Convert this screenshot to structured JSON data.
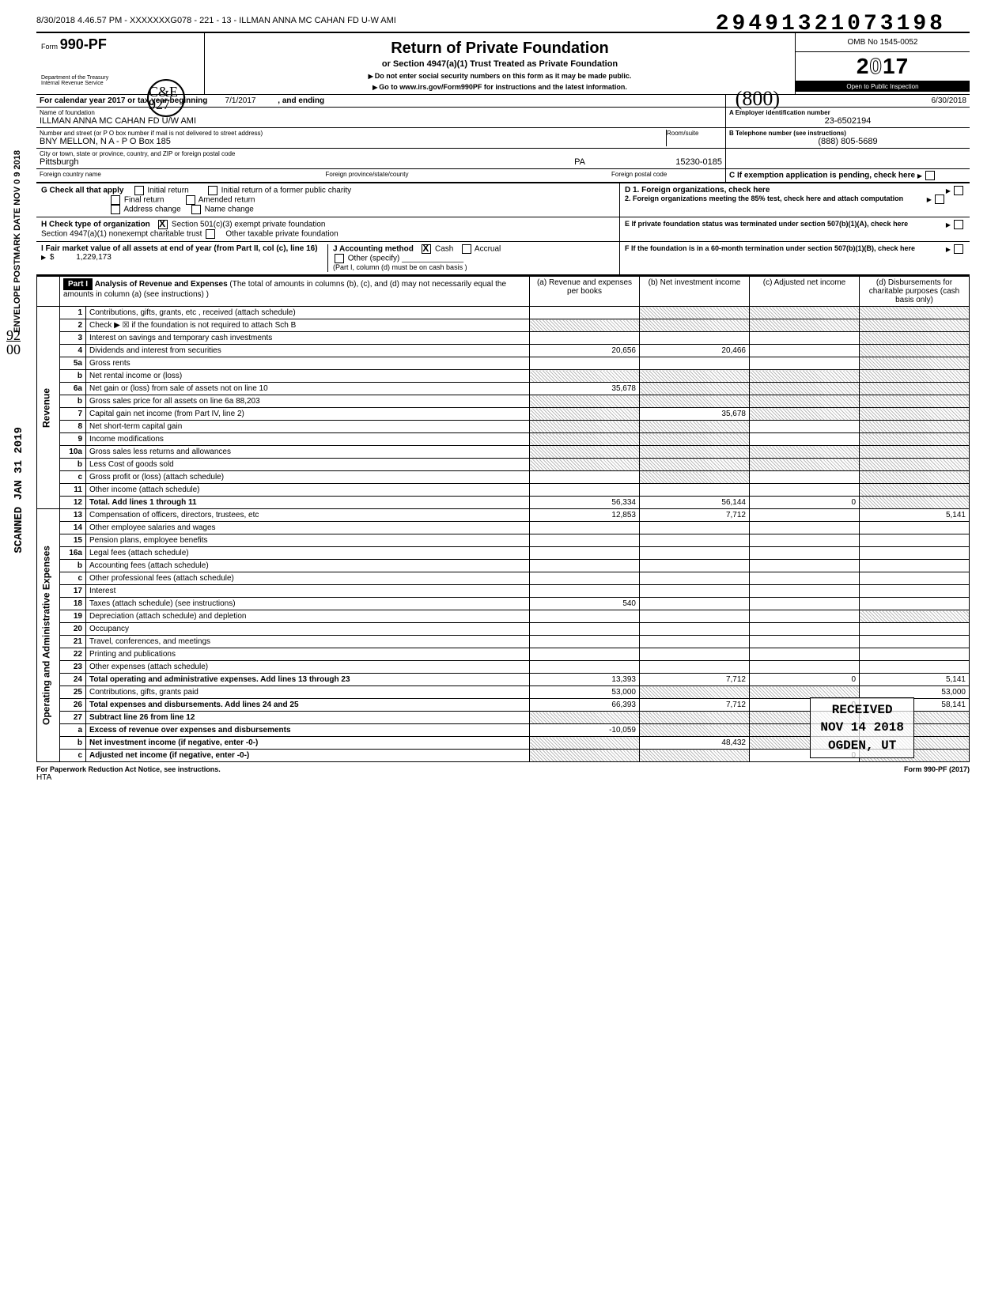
{
  "dln": "29491321073198",
  "file_id": "8/30/2018 4.46.57 PM - XXXXXXXG078 - 221 - 13 - ILLMAN ANNA MC CAHAN FD U-W AMI",
  "form": {
    "number": "990-PF",
    "word": "Form",
    "dept1": "Department of the Treasury",
    "dept2": "Internal Revenue Service",
    "title": "Return of Private Foundation",
    "subtitle": "or Section 4947(a)(1) Trust Treated as Private Foundation",
    "note1": "Do not enter social security numbers on this form as it may be made public.",
    "note2": "Go to www.irs.gov/Form990PF for instructions and the latest information.",
    "omb": "OMB No 1545-0052",
    "year": "2017",
    "inspection": "Open to Public Inspection"
  },
  "period": {
    "label": "For calendar year 2017 or tax year beginning",
    "begin": "7/1/2017",
    "mid": ", and ending",
    "end": "6/30/2018"
  },
  "foundation": {
    "name_label": "Name of foundation",
    "name": "ILLMAN ANNA MC CAHAN FD U/W AMI",
    "addr_label": "Number and street (or P O box number if mail is not delivered to street address)",
    "addr": "BNY MELLON, N A  -  P O Box 185",
    "room_label": "Room/suite",
    "city_label": "City or town, state or province, country, and ZIP or foreign postal code",
    "city": "Pittsburgh",
    "state": "PA",
    "zip": "15230-0185",
    "foreign_country_label": "Foreign country name",
    "foreign_prov_label": "Foreign province/state/county",
    "foreign_postal_label": "Foreign postal code"
  },
  "right_box": {
    "A_label": "A Employer identification number",
    "A": "23-6502194",
    "B_label": "B Telephone number (see instructions)",
    "B": "(888) 805-5689",
    "C_label": "C  If exemption application is pending, check here",
    "D1": "D  1. Foreign organizations, check here",
    "D2": "2. Foreign organizations meeting the 85% test, check here and attach computation",
    "E": "E  If private foundation status was terminated under section 507(b)(1)(A), check here",
    "F": "F  If the foundation is in a 60-month termination under section 507(b)(1)(B), check here"
  },
  "G": {
    "label": "G  Check all that apply",
    "opts": [
      "Initial return",
      "Final return",
      "Address change",
      "Initial return of a former public charity",
      "Amended return",
      "Name change"
    ]
  },
  "H": {
    "label": "H  Check type of organization",
    "a": "Section 501(c)(3) exempt private foundation",
    "b": "Section 4947(a)(1) nonexempt charitable trust",
    "c": "Other taxable private foundation"
  },
  "I": {
    "label": "I   Fair market value of all assets at end of year (from Part II, col (c), line 16)",
    "amount": "1,229,173"
  },
  "J": {
    "label": "J   Accounting method",
    "cash": "Cash",
    "accrual": "Accrual",
    "other": "Other (specify)",
    "note": "(Part I, column (d) must be on cash basis )"
  },
  "part1": {
    "header": "Part I",
    "title": "Analysis of Revenue and Expenses",
    "title_note": "(The total of amounts in columns (b), (c), and (d) may not necessarily equal the amounts in column (a) (see instructions) )",
    "col_a": "(a) Revenue and expenses per books",
    "col_b": "(b) Net investment income",
    "col_c": "(c) Adjusted net income",
    "col_d": "(d) Disbursements for charitable purposes (cash basis only)"
  },
  "rows": [
    {
      "n": "1",
      "desc": "Contributions, gifts, grants, etc , received (attach schedule)",
      "a": "",
      "b": "shade",
      "c": "shade",
      "d": "shade"
    },
    {
      "n": "2",
      "desc": "Check ▶ ☒ if the foundation is not required to attach Sch B",
      "a": "shade",
      "b": "shade",
      "c": "shade",
      "d": "shade"
    },
    {
      "n": "3",
      "desc": "Interest on savings and temporary cash investments",
      "a": "",
      "b": "",
      "c": "",
      "d": "shade"
    },
    {
      "n": "4",
      "desc": "Dividends and interest from securities",
      "a": "20,656",
      "b": "20,466",
      "c": "",
      "d": "shade"
    },
    {
      "n": "5a",
      "desc": "Gross rents",
      "a": "",
      "b": "",
      "c": "",
      "d": "shade"
    },
    {
      "n": "b",
      "desc": "Net rental income or (loss)",
      "a": "shade",
      "b": "shade",
      "c": "shade",
      "d": "shade"
    },
    {
      "n": "6a",
      "desc": "Net gain or (loss) from sale of assets not on line 10",
      "a": "35,678",
      "b": "shade",
      "c": "shade",
      "d": "shade"
    },
    {
      "n": "b",
      "desc": "Gross sales price for all assets on line 6a                    88,203",
      "a": "shade",
      "b": "shade",
      "c": "shade",
      "d": "shade"
    },
    {
      "n": "7",
      "desc": "Capital gain net income (from Part IV, line 2)",
      "a": "shade",
      "b": "35,678",
      "c": "shade",
      "d": "shade"
    },
    {
      "n": "8",
      "desc": "Net short-term capital gain",
      "a": "shade",
      "b": "shade",
      "c": "",
      "d": "shade"
    },
    {
      "n": "9",
      "desc": "Income modifications",
      "a": "shade",
      "b": "shade",
      "c": "",
      "d": "shade"
    },
    {
      "n": "10a",
      "desc": "Gross sales less returns and allowances",
      "a": "shade",
      "b": "shade",
      "c": "shade",
      "d": "shade"
    },
    {
      "n": "b",
      "desc": "Less Cost of goods sold",
      "a": "shade",
      "b": "shade",
      "c": "shade",
      "d": "shade"
    },
    {
      "n": "c",
      "desc": "Gross profit or (loss) (attach schedule)",
      "a": "",
      "b": "shade",
      "c": "",
      "d": "shade"
    },
    {
      "n": "11",
      "desc": "Other income (attach schedule)",
      "a": "",
      "b": "",
      "c": "",
      "d": "shade"
    },
    {
      "n": "12",
      "desc": "Total. Add lines 1 through 11",
      "a": "56,334",
      "b": "56,144",
      "c": "0",
      "d": "shade",
      "bold": true
    },
    {
      "n": "13",
      "desc": "Compensation of officers, directors, trustees, etc",
      "a": "12,853",
      "b": "7,712",
      "c": "",
      "d": "5,141"
    },
    {
      "n": "14",
      "desc": "Other employee salaries and wages",
      "a": "",
      "b": "",
      "c": "",
      "d": ""
    },
    {
      "n": "15",
      "desc": "Pension plans, employee benefits",
      "a": "",
      "b": "",
      "c": "",
      "d": ""
    },
    {
      "n": "16a",
      "desc": "Legal fees (attach schedule)",
      "a": "",
      "b": "",
      "c": "",
      "d": ""
    },
    {
      "n": "b",
      "desc": "Accounting fees (attach schedule)",
      "a": "",
      "b": "",
      "c": "",
      "d": ""
    },
    {
      "n": "c",
      "desc": "Other professional fees (attach schedule)",
      "a": "",
      "b": "",
      "c": "",
      "d": ""
    },
    {
      "n": "17",
      "desc": "Interest",
      "a": "",
      "b": "",
      "c": "",
      "d": ""
    },
    {
      "n": "18",
      "desc": "Taxes (attach schedule) (see instructions)",
      "a": "540",
      "b": "",
      "c": "",
      "d": ""
    },
    {
      "n": "19",
      "desc": "Depreciation (attach schedule) and depletion",
      "a": "",
      "b": "",
      "c": "",
      "d": "shade"
    },
    {
      "n": "20",
      "desc": "Occupancy",
      "a": "",
      "b": "",
      "c": "",
      "d": ""
    },
    {
      "n": "21",
      "desc": "Travel, conferences, and meetings",
      "a": "",
      "b": "",
      "c": "",
      "d": ""
    },
    {
      "n": "22",
      "desc": "Printing and publications",
      "a": "",
      "b": "",
      "c": "",
      "d": ""
    },
    {
      "n": "23",
      "desc": "Other expenses (attach schedule)",
      "a": "",
      "b": "",
      "c": "",
      "d": ""
    },
    {
      "n": "24",
      "desc": "Total operating and administrative expenses. Add lines 13 through 23",
      "a": "13,393",
      "b": "7,712",
      "c": "0",
      "d": "5,141",
      "bold": true
    },
    {
      "n": "25",
      "desc": "Contributions, gifts, grants paid",
      "a": "53,000",
      "b": "shade",
      "c": "shade",
      "d": "53,000"
    },
    {
      "n": "26",
      "desc": "Total expenses and disbursements. Add lines 24 and 25",
      "a": "66,393",
      "b": "7,712",
      "c": "0",
      "d": "58,141",
      "bold": true
    },
    {
      "n": "27",
      "desc": "Subtract line 26 from line 12",
      "a": "shade",
      "b": "shade",
      "c": "shade",
      "d": "shade",
      "bold": true
    },
    {
      "n": "a",
      "desc": "Excess of revenue over expenses and disbursements",
      "a": "-10,059",
      "b": "shade",
      "c": "shade",
      "d": "shade",
      "bold": true
    },
    {
      "n": "b",
      "desc": "Net investment income (if negative, enter -0-)",
      "a": "shade",
      "b": "48,432",
      "c": "shade",
      "d": "shade",
      "bold": true
    },
    {
      "n": "c",
      "desc": "Adjusted net income (if negative, enter -0-)",
      "a": "shade",
      "b": "shade",
      "c": "0",
      "d": "shade",
      "bold": true
    }
  ],
  "side_labels": {
    "revenue": "Revenue",
    "expenses": "Operating and Administrative Expenses"
  },
  "footer": {
    "left": "For Paperwork Reduction Act Notice, see instructions.",
    "mid": "HTA",
    "right": "Form 990-PF (2017)"
  },
  "stamps": {
    "postmark": "ENVELOPE POSTMARK DATE  NOV 0 9 2018",
    "scanned": "SCANNED JAN 31 2019",
    "received_l1": "RECEIVED",
    "received_l2": "NOV 14 2018",
    "received_l3": "OGDEN, UT",
    "hand_fraction_top": "92",
    "hand_fraction_bot": "00",
    "hand_circle": "C&E 927",
    "hand_80": "(800)"
  }
}
